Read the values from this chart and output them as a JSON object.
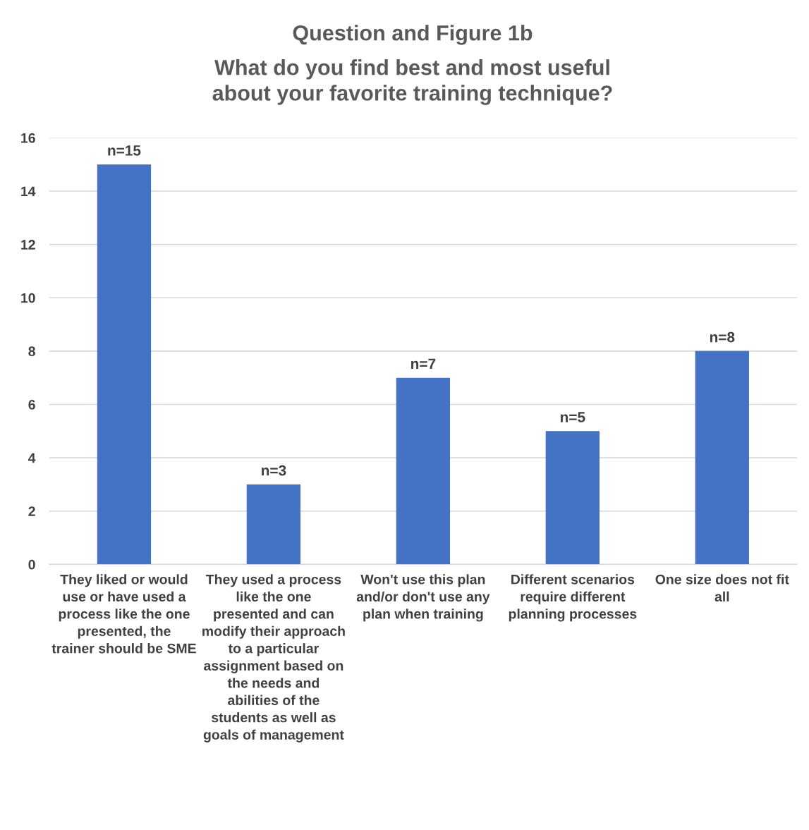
{
  "chart_data": {
    "type": "bar",
    "title": "Question and Figure 1b",
    "subtitle": "What do you find best and most useful about your favorite training technique?",
    "categories": [
      "They liked or would use or have used a process like the one presented, the trainer should be SME",
      "They used a process like the one presented and can modify their approach to a particular assignment based on the needs and abilities of the students as well as goals of management",
      "Won't use this plan and/or don't use any plan when training",
      "Different scenarios require different planning processes",
      "One size does not fit all"
    ],
    "values": [
      15,
      3,
      7,
      5,
      8
    ],
    "value_labels": [
      "n=15",
      "n=3",
      "n=7",
      "n=5",
      "n=8"
    ],
    "color": "#4472c4",
    "ylim": [
      0,
      16
    ],
    "yticks": [
      0,
      2,
      4,
      6,
      8,
      10,
      12,
      14,
      16
    ],
    "grid": "y"
  }
}
